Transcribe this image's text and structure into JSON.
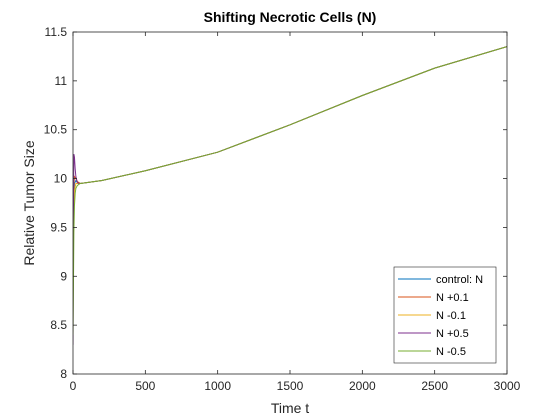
{
  "chart_data": {
    "type": "line",
    "title": "Shifting Necrotic Cells (N)",
    "xlabel": "Time t",
    "ylabel": "Relative Tumor Size",
    "xlim": [
      0,
      3000
    ],
    "ylim": [
      8,
      11.5
    ],
    "xticks": [
      0,
      500,
      1000,
      1500,
      2000,
      2500,
      3000
    ],
    "yticks": [
      8,
      8.5,
      9,
      9.5,
      10,
      10.5,
      11,
      11.5
    ],
    "xtick_labels": [
      "0",
      "500",
      "1000",
      "1500",
      "2000",
      "2500",
      "3000"
    ],
    "ytick_labels": [
      "8",
      "8.5",
      "9",
      "9.5",
      "10",
      "10.5",
      "11",
      "11.5"
    ],
    "grid": false,
    "legend_position": "bottom-right",
    "series": [
      {
        "name": "control: N",
        "color": "#0072BD",
        "x": [
          0,
          5,
          10,
          20,
          30,
          50,
          100,
          200,
          500,
          1000,
          1500,
          2000,
          2500,
          3000
        ],
        "y": [
          9.0,
          9.75,
          9.95,
          9.98,
          9.96,
          9.95,
          9.96,
          9.98,
          10.08,
          10.27,
          10.55,
          10.85,
          11.13,
          11.35
        ]
      },
      {
        "name": "N +0.1",
        "color": "#D95319",
        "x": [
          0,
          5,
          10,
          20,
          30,
          50,
          100,
          200,
          500,
          1000,
          1500,
          2000,
          2500,
          3000
        ],
        "y": [
          9.0,
          9.9,
          10.02,
          10.0,
          9.97,
          9.95,
          9.96,
          9.98,
          10.08,
          10.27,
          10.55,
          10.85,
          11.13,
          11.35
        ]
      },
      {
        "name": "N -0.1",
        "color": "#EDB120",
        "x": [
          0,
          5,
          10,
          20,
          30,
          50,
          100,
          200,
          500,
          1000,
          1500,
          2000,
          2500,
          3000
        ],
        "y": [
          9.0,
          9.6,
          9.88,
          9.95,
          9.95,
          9.95,
          9.96,
          9.98,
          10.08,
          10.27,
          10.55,
          10.85,
          11.13,
          11.35
        ]
      },
      {
        "name": "N +0.5",
        "color": "#7E2F8E",
        "x": [
          0,
          3,
          6,
          10,
          15,
          20,
          30,
          40,
          50,
          100,
          200,
          500,
          1000,
          1500,
          2000,
          2500,
          3000
        ],
        "y": [
          8.3,
          9.6,
          10.25,
          10.22,
          10.1,
          10.02,
          9.96,
          9.95,
          9.95,
          9.96,
          9.98,
          10.08,
          10.27,
          10.55,
          10.85,
          11.13,
          11.35
        ]
      },
      {
        "name": "N -0.5",
        "color": "#77AC30",
        "x": [
          0,
          3,
          6,
          10,
          15,
          20,
          30,
          40,
          50,
          100,
          200,
          500,
          1000,
          1500,
          2000,
          2500,
          3000
        ],
        "y": [
          8.4,
          8.9,
          9.45,
          9.72,
          9.85,
          9.9,
          9.93,
          9.94,
          9.95,
          9.96,
          9.98,
          10.08,
          10.27,
          10.55,
          10.85,
          11.13,
          11.35
        ]
      }
    ]
  }
}
